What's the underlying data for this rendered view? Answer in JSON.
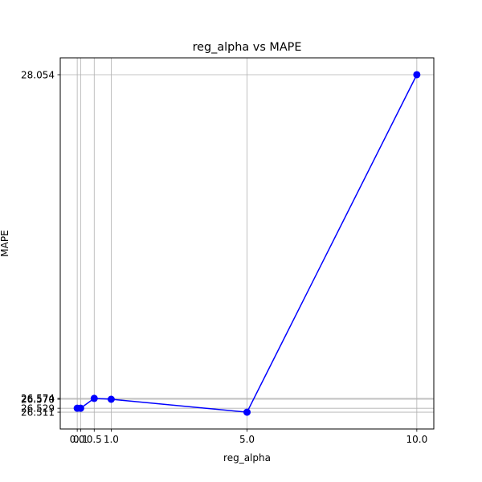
{
  "chart_data": {
    "type": "line",
    "title": "reg_alpha vs MAPE",
    "xlabel": "reg_alpha",
    "ylabel": "MAPE",
    "xlim": [
      -0.5,
      10.5
    ],
    "ylim": [
      26.4341,
      28.1311
    ],
    "grid": true,
    "x": [
      0.0,
      0.1,
      0.5,
      1.0,
      5.0,
      10.0
    ],
    "x_tick_labels": [
      "0.0",
      "0.1",
      "0.5",
      "1.0",
      "5.0",
      "10.0"
    ],
    "y": [
      26.529,
      26.529,
      26.574,
      26.57,
      26.511,
      28.054
    ],
    "y_tick_values": [
      26.511,
      26.529,
      26.57,
      26.574,
      28.054
    ],
    "y_tick_labels": [
      "26.511",
      "26.529",
      "26.570",
      "26.574",
      "28.054"
    ],
    "series": [
      {
        "color": "#0000ff",
        "marker": "circle"
      }
    ]
  }
}
